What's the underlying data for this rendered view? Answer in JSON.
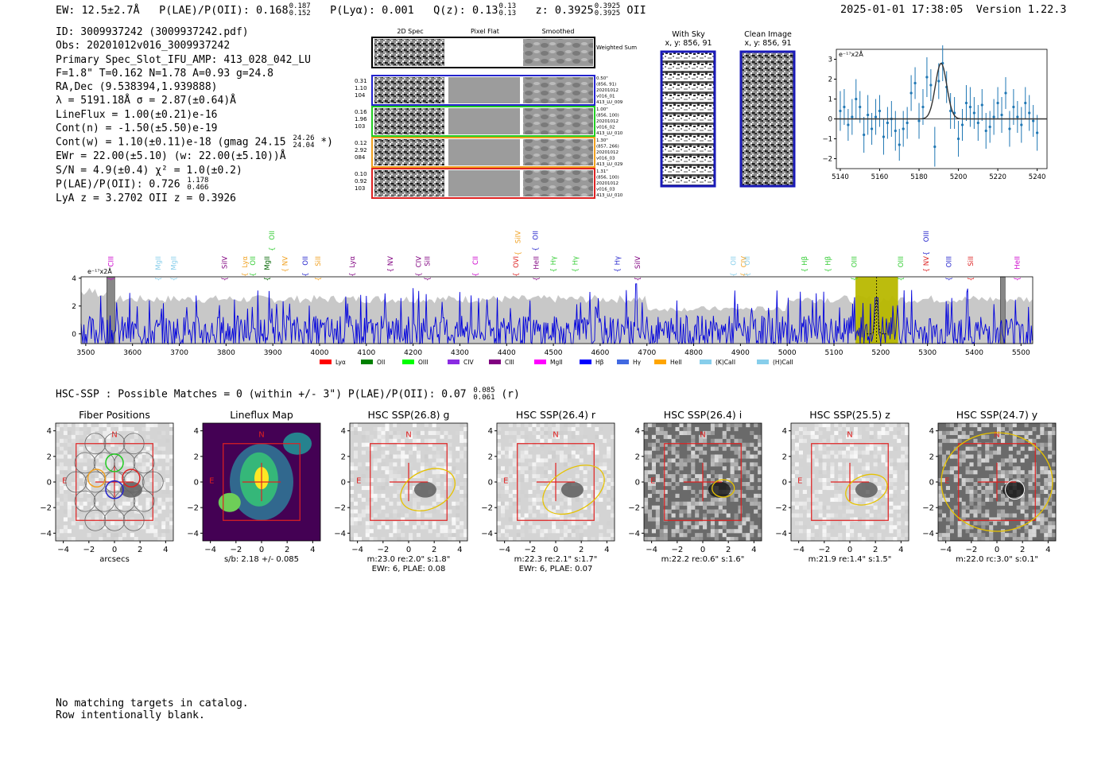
{
  "header": {
    "ew": "EW: 12.5±2.7Å",
    "plae": "P(LAE)/P(OII): 0.168",
    "plae_hi": "0.187",
    "plae_lo": "0.152",
    "plya": "P(Lyα): 0.001",
    "qz": "Q(z): 0.13",
    "qz_hi": "0.13",
    "qz_lo": "0.13",
    "z": "z: 0.3925",
    "z_hi": "0.3925",
    "z_lo": "0.3925",
    "z_line": "OII",
    "timestamp": "2025-01-01 17:38:05",
    "version": "Version 1.22.3"
  },
  "info": {
    "id": "ID: 3009937242 (3009937242.pdf)",
    "obs": "Obs: 20201012v016_3009937242",
    "primary": "Primary Spec_Slot_IFU_AMP: 413_028_042_LU",
    "fiber": "F=1.8\"  T=0.162  N=1.78  A=0.93  g=24.8",
    "radec": "RA,Dec (9.538394,1.939888)",
    "lambda": "λ = 5191.18Å  σ = 2.87(±0.64)Å",
    "lineflux": "LineFlux = 1.00(±0.21)e-16",
    "contn": "Cont(n) = -1.50(±5.50)e-19",
    "contw": "Cont(w) = 1.10(±0.11)e-18 (gmag 24.15",
    "contw_hi": "24.26",
    "contw_lo": "24.04",
    "contw_end": "*)",
    "ewr": "EWr = 22.00(±5.10) (w: 22.00(±5.10))Å",
    "sn": "S/N = 4.9(±0.4)  χ² = 1.0(±0.2)",
    "plae": "P(LAE)/P(OII): 0.726",
    "plae_hi": "1.178",
    "plae_lo": "0.466",
    "lya": "LyA z = 3.2702  OII z = 0.3926"
  },
  "spec_panel": {
    "col_titles": [
      "2D Spec",
      "Pixel Flat",
      "Smoothed"
    ],
    "weighted": "Weighted Sum",
    "rows": [
      {
        "left": [
          "0.31",
          "1.10",
          "104"
        ],
        "right": [
          "0.50\"",
          "(856, 91)",
          "20201012",
          "v016_01",
          "413_LU_009"
        ],
        "color": "#2222cc"
      },
      {
        "left": [
          "0.16",
          "1.96",
          "103"
        ],
        "right": [
          "1.00\"",
          "(856, 100)",
          "20201012",
          "v016_02",
          "413_LU_010"
        ],
        "color": "#22cc22"
      },
      {
        "left": [
          "0.12",
          "2.92",
          "084"
        ],
        "right": [
          "1.30\"",
          "(857, 266)",
          "20201012",
          "v016_03",
          "413_LU_029"
        ],
        "color": "#f0a020"
      },
      {
        "left": [
          "0.10",
          "0.92",
          "103"
        ],
        "right": [
          "1.31\"",
          "(856, 100)",
          "20201012",
          "v016_03",
          "413_LU_010"
        ],
        "color": "#dd2222"
      }
    ]
  },
  "sky_panel": {
    "title": "With Sky",
    "coords": "x, y: 856, 91"
  },
  "clean_panel": {
    "title": "Clean Image",
    "coords": "x, y: 856, 91"
  },
  "chart_data": [
    {
      "type": "scatter",
      "title": "",
      "ylabel": "e⁻¹⁷x2Å",
      "xlim": [
        5138,
        5245
      ],
      "ylim": [
        -2.5,
        3.5
      ],
      "x_ticks": [
        5140,
        5160,
        5180,
        5200,
        5220,
        5240
      ],
      "y_ticks": [
        -2,
        -1,
        0,
        1,
        2,
        3
      ],
      "x": [
        5140,
        5142,
        5144,
        5146,
        5148,
        5150,
        5152,
        5154,
        5156,
        5158,
        5160,
        5162,
        5164,
        5166,
        5168,
        5170,
        5172,
        5174,
        5176,
        5178,
        5180,
        5182,
        5184,
        5186,
        5188,
        5190,
        5192,
        5194,
        5196,
        5198,
        5200,
        5202,
        5204,
        5206,
        5208,
        5210,
        5212,
        5214,
        5216,
        5218,
        5220,
        5222,
        5224,
        5226,
        5228,
        5230,
        5232,
        5234,
        5236,
        5238,
        5240
      ],
      "y": [
        0.4,
        0.6,
        -0.3,
        0.1,
        1.0,
        0.6,
        -0.8,
        0.2,
        -0.5,
        0.1,
        0.4,
        -0.9,
        -0.2,
        0.0,
        -0.6,
        -1.3,
        -0.5,
        -0.2,
        1.3,
        1.8,
        -0.1,
        0.6,
        2.1,
        1.7,
        -1.4,
        1.9,
        2.8,
        1.6,
        0.4,
        0.3,
        -1.0,
        -0.3,
        0.8,
        0.6,
        0.3,
        -0.2,
        0.7,
        -0.6,
        -0.4,
        0.1,
        0.8,
        0.2,
        1.3,
        -0.5,
        0.6,
        0.1,
        -0.3,
        0.8,
        0.3,
        -0.1,
        -0.7
      ],
      "err": [
        1.0,
        0.9,
        0.8,
        0.9,
        1.0,
        0.8,
        0.9,
        1.0,
        0.8,
        0.9,
        0.8,
        0.9,
        0.8,
        0.9,
        1.0,
        0.8,
        0.9,
        0.8,
        0.9,
        0.8,
        0.9,
        0.9,
        1.0,
        0.8,
        1.0,
        0.9,
        0.9,
        0.8,
        0.9,
        0.8,
        0.9,
        0.8,
        0.9,
        1.0,
        0.8,
        0.9,
        0.8,
        0.9,
        0.8,
        0.9,
        0.8,
        0.9,
        0.8,
        0.9,
        0.9,
        0.8,
        0.9,
        0.8,
        0.9,
        0.8,
        0.9
      ],
      "fit": {
        "amp": 2.8,
        "center": 5191.2,
        "sigma": 2.87
      }
    },
    {
      "type": "line",
      "ylabel": "e⁻¹⁷x2Å",
      "xlim": [
        3490,
        5525
      ],
      "ylim": [
        -0.7,
        4.1
      ],
      "x_ticks": [
        3500,
        3600,
        3700,
        3800,
        3900,
        4000,
        4100,
        4200,
        4300,
        4400,
        4500,
        4600,
        4700,
        4800,
        4900,
        5000,
        5100,
        5200,
        5300,
        5400,
        5500
      ],
      "y_ticks": [
        0,
        2,
        4
      ],
      "highlight_range": [
        5146,
        5237
      ],
      "emission_line": 5191.18,
      "line_markers": [
        {
          "name": "CIII",
          "x": 3554,
          "color": "#cc00cc",
          "row": 0
        },
        {
          "name": "MgII",
          "x": 3655,
          "color": "#87ceeb",
          "row": 0
        },
        {
          "name": "MgII",
          "x": 3688,
          "color": "#87ceeb",
          "row": 0
        },
        {
          "name": "SiIV",
          "x": 3797,
          "color": "#800080",
          "row": 0
        },
        {
          "name": "Lyα",
          "x": 3840,
          "color": "#f0a020",
          "row": 0
        },
        {
          "name": "OII",
          "x": 3857,
          "color": "#33cc33",
          "row": 0
        },
        {
          "name": "MgII",
          "x": 3888,
          "color": "#006400",
          "row": 0
        },
        {
          "name": "OII",
          "x": 3898,
          "color": "#33cc33",
          "row": 1
        },
        {
          "name": "NV",
          "x": 3926,
          "color": "#f0a020",
          "row": 0
        },
        {
          "name": "OII",
          "x": 3969,
          "color": "#2222cc",
          "row": 0
        },
        {
          "name": "SiII",
          "x": 3997,
          "color": "#f0a020",
          "row": 0
        },
        {
          "name": "Lyα",
          "x": 4070,
          "color": "#800080",
          "row": 0
        },
        {
          "name": "NV",
          "x": 4151,
          "color": "#800080",
          "row": 0
        },
        {
          "name": "CIV",
          "x": 4212,
          "color": "#800080",
          "row": 0
        },
        {
          "name": "SiII",
          "x": 4230,
          "color": "#800080",
          "row": 0
        },
        {
          "name": "CII",
          "x": 4333,
          "color": "#cc00cc",
          "row": 0
        },
        {
          "name": "OVI",
          "x": 4420,
          "color": "#dd2222",
          "row": 0
        },
        {
          "name": "SiIV",
          "x": 4424,
          "color": "#f0a020",
          "row": 1
        },
        {
          "name": "OII",
          "x": 4462,
          "color": "#2222cc",
          "row": 1
        },
        {
          "name": "HeII",
          "x": 4463,
          "color": "#800080",
          "row": 0
        },
        {
          "name": "Hγ",
          "x": 4500,
          "color": "#33cc33",
          "row": 0
        },
        {
          "name": "Hγ",
          "x": 4547,
          "color": "#33cc33",
          "row": 0
        },
        {
          "name": "Hγ",
          "x": 4637,
          "color": "#2222cc",
          "row": 0
        },
        {
          "name": "SiIV",
          "x": 4680,
          "color": "#800080",
          "row": 0
        },
        {
          "name": "OII",
          "x": 4885,
          "color": "#87ceeb",
          "row": 0
        },
        {
          "name": "CIV",
          "x": 4907,
          "color": "#f0a020",
          "row": 0
        },
        {
          "name": "OII",
          "x": 4915,
          "color": "#87ceeb",
          "row": 0
        },
        {
          "name": "Hβ",
          "x": 5037,
          "color": "#33cc33",
          "row": 0
        },
        {
          "name": "Hβ",
          "x": 5087,
          "color": "#33cc33",
          "row": 0
        },
        {
          "name": "OIII",
          "x": 5143,
          "color": "#33cc33",
          "row": 0
        },
        {
          "name": "OIII",
          "x": 5243,
          "color": "#33cc33",
          "row": 0
        },
        {
          "name": "NV",
          "x": 5297,
          "color": "#dd2222",
          "row": 0
        },
        {
          "name": "OIII",
          "x": 5297,
          "color": "#2222cc",
          "row": 1
        },
        {
          "name": "OIII",
          "x": 5346,
          "color": "#2222cc",
          "row": 0
        },
        {
          "name": "SiII",
          "x": 5392,
          "color": "#dd2222",
          "row": 0
        },
        {
          "name": "HeII",
          "x": 5492,
          "color": "#cc00cc",
          "row": 0
        }
      ],
      "legend": [
        {
          "name": "Lyα",
          "color": "#ff0000"
        },
        {
          "name": "OII",
          "color": "#008000"
        },
        {
          "name": "OIII",
          "color": "#00ff00"
        },
        {
          "name": "CIV",
          "color": "#8a2be2"
        },
        {
          "name": "CIII",
          "color": "#800080"
        },
        {
          "name": "MgII",
          "color": "#ff00ff"
        },
        {
          "name": "Hβ",
          "color": "#0000ff"
        },
        {
          "name": "Hγ",
          "color": "#4169e1"
        },
        {
          "name": "HeII",
          "color": "#ffa500"
        },
        {
          "name": "(K)CaII",
          "color": "#87ceeb"
        },
        {
          "name": "(H)CaII",
          "color": "#87ceeb"
        }
      ]
    }
  ],
  "hsc": {
    "title": "HSC-SSP : Possible Matches = 0 (within +/- 3\")  P(LAE)/P(OII): 0.07",
    "plae_hi": "0.085",
    "plae_lo": "0.061",
    "band": "(r)",
    "panels": [
      {
        "title": "Fiber Positions",
        "cap1": "arcsecs",
        "cap2": "",
        "style": "fiber"
      },
      {
        "title": "Lineflux Map",
        "cap1": "s/b: 2.18 +/- 0.085",
        "cap2": "",
        "style": "lineflux"
      },
      {
        "title": "HSC SSP(26.8) g",
        "cap1": "m:23.0  re:2.0\"  s:1.8\"",
        "cap2": "EWr: 6, PLAE: 0.08",
        "style": "light"
      },
      {
        "title": "HSC SSP(26.4) r",
        "cap1": "m:22.3  re:2.1\"  s:1.7\"",
        "cap2": "EWr: 6, PLAE: 0.07",
        "style": "light"
      },
      {
        "title": "HSC SSP(26.4) i",
        "cap1": "m:22.2  re:0.6\"  s:1.6\"",
        "cap2": "",
        "style": "dark"
      },
      {
        "title": "HSC SSP(25.5) z",
        "cap1": "m:21.9  re:1.4\"  s:1.5\"",
        "cap2": "",
        "style": "light"
      },
      {
        "title": "HSC SSP(24.7) y",
        "cap1": "m:22.0  rc:3.0\"  s:0.1\"",
        "cap2": "",
        "style": "dark"
      }
    ],
    "ticks": [
      "−4",
      "−2",
      "0",
      "2",
      "4"
    ],
    "north": "N",
    "east": "E"
  },
  "footer": {
    "line1": "No matching targets in catalog.",
    "line2": "Row intentionally blank."
  }
}
